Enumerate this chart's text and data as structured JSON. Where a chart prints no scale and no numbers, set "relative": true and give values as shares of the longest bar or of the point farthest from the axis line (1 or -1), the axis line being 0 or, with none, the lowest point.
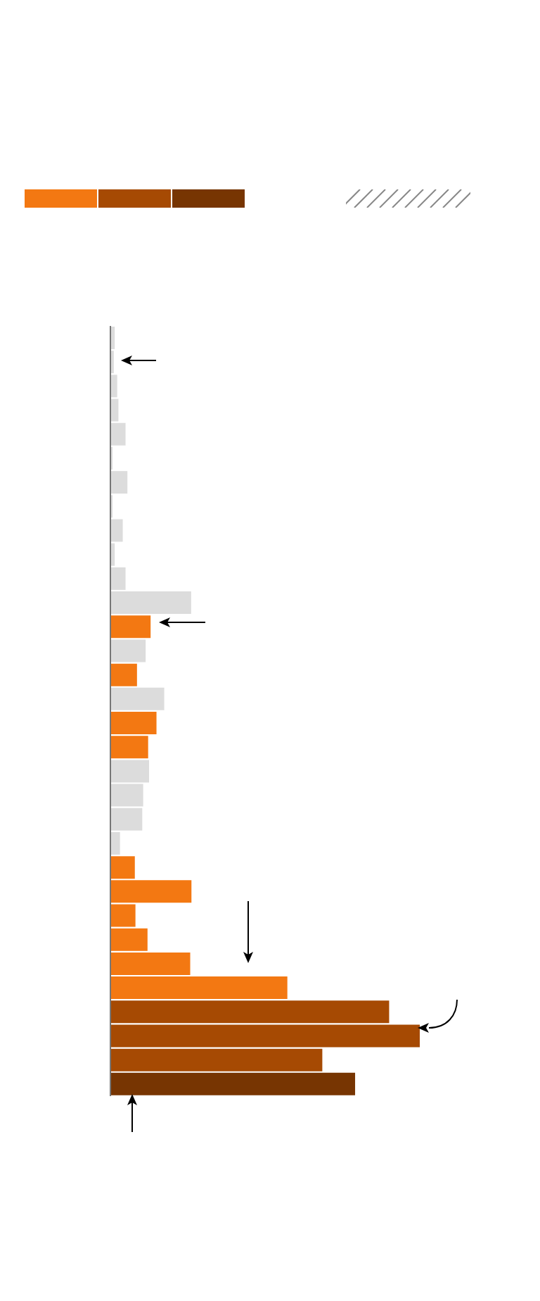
{
  "chart_data": {
    "type": "bar",
    "orientation": "horizontal",
    "relative": true,
    "categories": [
      null,
      null,
      null,
      null,
      null,
      null,
      null,
      null,
      null,
      null,
      null,
      null,
      null,
      null,
      null,
      null,
      null,
      null,
      null,
      null,
      null,
      null,
      null,
      null,
      null,
      null,
      null,
      null,
      null,
      null,
      null,
      null
    ],
    "values": [
      0.014,
      0.011,
      0.022,
      0.026,
      0.049,
      0.007,
      0.055,
      0.007,
      0.04,
      0.014,
      0.049,
      0.261,
      0.13,
      0.114,
      0.086,
      0.174,
      0.149,
      0.122,
      0.125,
      0.106,
      0.103,
      0.031,
      0.079,
      0.262,
      0.081,
      0.12,
      0.258,
      0.572,
      0.901,
      1,
      0.685,
      0.791
    ],
    "colors": [
      "#dcdcdc",
      "#dcdcdc",
      "#dcdcdc",
      "#dcdcdc",
      "#dcdcdc",
      "#dcdcdc",
      "#dcdcdc",
      "#dcdcdc",
      "#dcdcdc",
      "#dcdcdc",
      "#dcdcdc",
      "#dcdcdc",
      "#f37812",
      "#dcdcdc",
      "#f37812",
      "#dcdcdc",
      "#f37812",
      "#f37812",
      "#dcdcdc",
      "#dcdcdc",
      "#dcdcdc",
      "#dcdcdc",
      "#f37812",
      "#f37812",
      "#f37812",
      "#f37812",
      "#f37812",
      "#f37812",
      "#a64a03",
      "#a64a03",
      "#a64a03",
      "#773502"
    ]
  }
}
